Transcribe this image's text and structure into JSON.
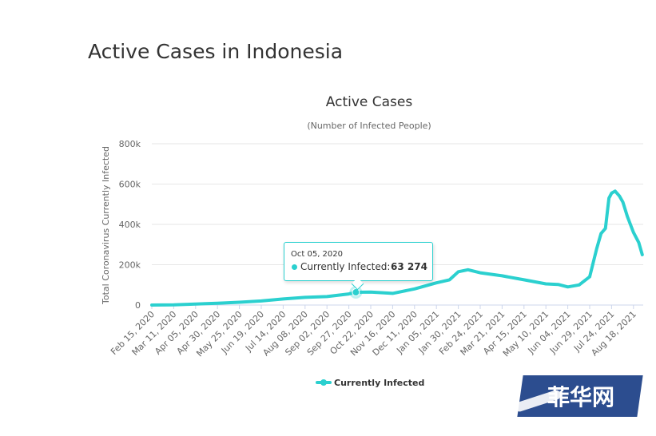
{
  "page": {
    "title": "Active Cases in Indonesia"
  },
  "chart_data": {
    "type": "line",
    "title": "Active Cases",
    "subtitle": "(Number of Infected People)",
    "ylabel": "Total Coronavirus Currently Infected",
    "xlabel": "",
    "ylim": [
      0,
      800000
    ],
    "yticks": [
      0,
      200000,
      400000,
      600000,
      800000
    ],
    "ytick_labels": [
      "0",
      "200k",
      "400k",
      "600k",
      "800k"
    ],
    "x_start": "2020-02-15",
    "xtick_labels": [
      "Feb 15, 2020",
      "Mar 11, 2020",
      "Apr 05, 2020",
      "Apr 30, 2020",
      "May 25, 2020",
      "Jun 19, 2020",
      "Jul 14, 2020",
      "Aug 08, 2020",
      "Sep 02, 2020",
      "Sep 27, 2020",
      "Oct 22, 2020",
      "Nov 16, 2020",
      "Dec 11, 2020",
      "Jan 05, 2021",
      "Jan 30, 2021",
      "Feb 24, 2021",
      "Mar 21, 2021",
      "Apr 15, 2021",
      "May 10, 2021",
      "Jun 04, 2021",
      "Jun 29, 2021",
      "Jul 24, 2021",
      "Aug 18, 2021"
    ],
    "grid": true,
    "legend_position": "bottom",
    "series": [
      {
        "name": "Currently Infected",
        "color": "#2bd0cf",
        "x": [
          "2020-02-15",
          "2020-03-11",
          "2020-04-05",
          "2020-04-30",
          "2020-05-25",
          "2020-06-19",
          "2020-07-14",
          "2020-08-08",
          "2020-09-02",
          "2020-09-27",
          "2020-10-05",
          "2020-10-22",
          "2020-11-16",
          "2020-12-11",
          "2021-01-05",
          "2021-01-20",
          "2021-01-30",
          "2021-02-10",
          "2021-02-24",
          "2021-03-21",
          "2021-04-15",
          "2021-05-10",
          "2021-05-24",
          "2021-06-04",
          "2021-06-17",
          "2021-06-29",
          "2021-07-07",
          "2021-07-12",
          "2021-07-17",
          "2021-07-21",
          "2021-07-24",
          "2021-07-28",
          "2021-08-02",
          "2021-08-06",
          "2021-08-11",
          "2021-08-18",
          "2021-08-24",
          "2021-08-28"
        ],
        "y": [
          0,
          1000,
          5000,
          9000,
          14000,
          20000,
          30000,
          38000,
          42000,
          55000,
          63274,
          64000,
          58000,
          80000,
          110000,
          125000,
          165000,
          175000,
          160000,
          145000,
          125000,
          105000,
          102000,
          90000,
          100000,
          140000,
          280000,
          355000,
          380000,
          530000,
          555000,
          565000,
          540000,
          510000,
          440000,
          360000,
          310000,
          250000
        ]
      }
    ],
    "tooltip": {
      "date": "Oct 05, 2020",
      "label": "Currently Infected:",
      "value_text": "63 274",
      "x": "2020-10-05",
      "y": 63274
    }
  },
  "watermark": {
    "text": "菲华网"
  }
}
